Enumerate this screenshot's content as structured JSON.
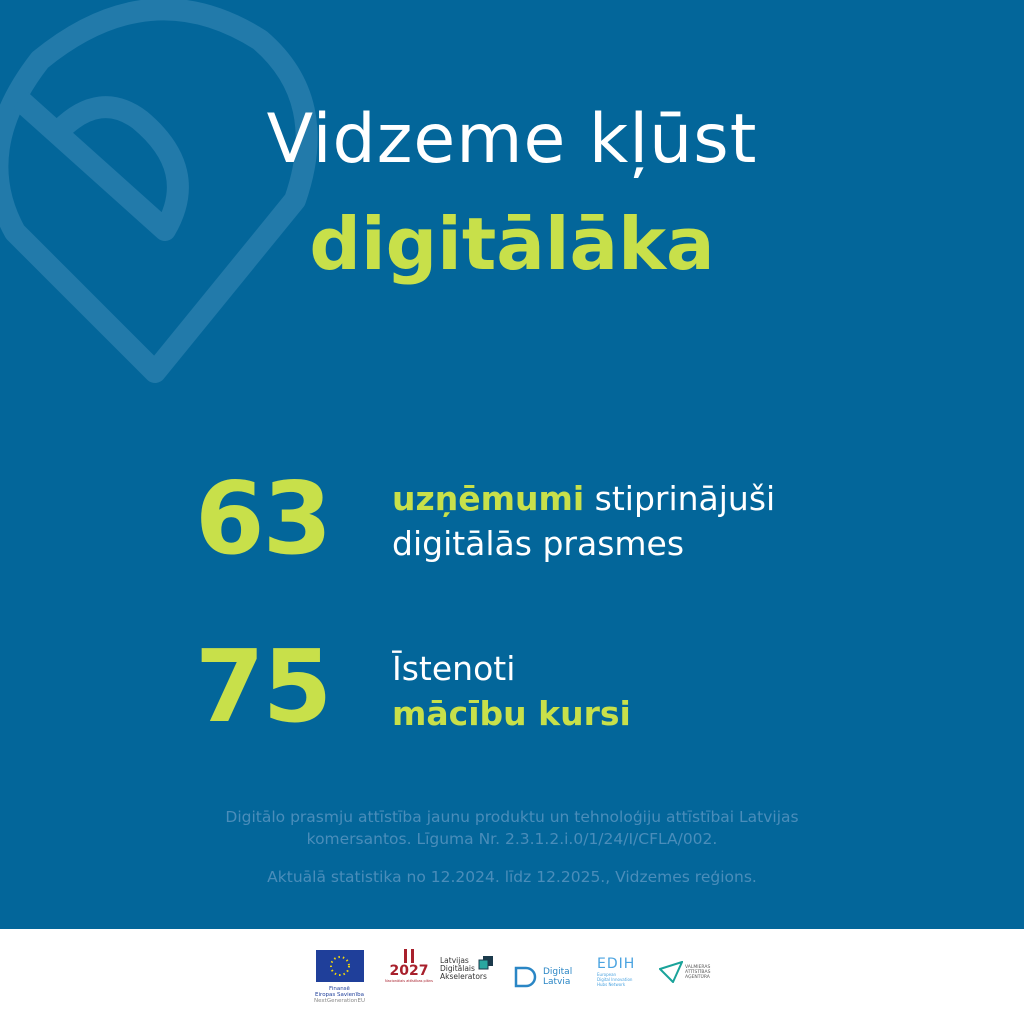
{
  "headline": {
    "line1": "Vidzeme kļūst",
    "line2": "digitālāka"
  },
  "stats": [
    {
      "value": "63",
      "highlight": "uzņēmumi",
      "text1": " stiprinājuši",
      "text2": "digitālās prasmes"
    },
    {
      "value": "75",
      "text1": "Īstenoti",
      "highlight": "mācību kursi"
    }
  ],
  "notes": {
    "project_line1": "Digitālo prasmju attīstība jaunu produktu un tehnoloģiju attīstībai Latvijas",
    "project_line2": "komersantos. Līguma Nr. 2.3.1.2.i.0/1/24/I/CFLA/002.",
    "period": "Aktuālā statistika no 12.2024. līdz 12.2025., Vidzemes reģions."
  },
  "footer_logos": {
    "eu": {
      "l1": "Finansē",
      "l2": "Eiropas Savienība",
      "l3": "NextGenerationEU"
    },
    "nap": {
      "year": "2027",
      "sub": "Nacionālais attīstības plāns"
    },
    "lda": {
      "l1": "Latvijas",
      "l2": "Digitālais",
      "l3": "Akselerators"
    },
    "dl": {
      "l1": "Digital",
      "l2": "Latvia"
    },
    "edih": {
      "mark": "EDIH",
      "l1": "European",
      "l2": "Digital Innovation",
      "l3": "Hubs Network"
    },
    "vaa": {
      "l1": "VALMIERAS",
      "l2": "ATTĪSTĪBAS",
      "l3": "AĢENTŪRA"
    }
  },
  "colors": {
    "background": "#03669a",
    "accent": "#c8e04a",
    "text": "#ffffff"
  }
}
